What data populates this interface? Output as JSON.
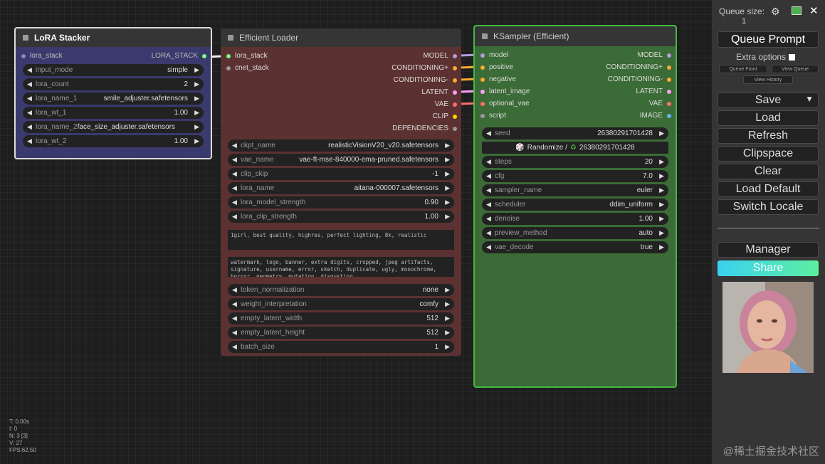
{
  "colors": {
    "background": "#1e1e1e",
    "lora_node_bg": "#3a3a6e",
    "loader_node_bg": "#5c3131",
    "sampler_node_bg": "#3b6b36",
    "sampler_border": "#43b943",
    "share_gradient_start": "#3ad0f0",
    "share_gradient_end": "#5cf0a0",
    "model_slot": "#b39ddb",
    "conditioning_slot": "#ffa931",
    "latent_slot": "#ff9cf9",
    "vae_slot": "#ff6e6e",
    "image_slot": "#64b5f6",
    "lora_stack_slot": "#7cff7c"
  },
  "lora_stacker": {
    "title": "LoRA Stacker",
    "input_slot": "lora_stack",
    "output_slot": "LORA_STACK",
    "widgets": [
      {
        "name": "input_mode",
        "value": "simple"
      },
      {
        "name": "lora_count",
        "value": "2"
      },
      {
        "name": "lora_name_1",
        "value": "smile_adjuster.safetensors"
      },
      {
        "name": "lora_wt_1",
        "value": "1.00"
      },
      {
        "name": "lora_name_2",
        "value": "face_size_adjuster.safetensors"
      },
      {
        "name": "lora_wt_2",
        "value": "1.00"
      }
    ]
  },
  "efficient_loader": {
    "title": "Efficient Loader",
    "inputs": [
      "lora_stack",
      "cnet_stack"
    ],
    "outputs": [
      "MODEL",
      "CONDITIONING+",
      "CONDITIONING-",
      "LATENT",
      "VAE",
      "CLIP",
      "DEPENDENCIES"
    ],
    "widgets_top": [
      {
        "name": "ckpt_name",
        "value": "realisticVisionV20_v20.safetensors"
      },
      {
        "name": "vae_name",
        "value": "vae-ft-mse-840000-ema-pruned.safetensors"
      },
      {
        "name": "clip_skip",
        "value": "-1"
      },
      {
        "name": "lora_name",
        "value": "aitana-000007.safetensors"
      },
      {
        "name": "lora_model_strength",
        "value": "0.90"
      },
      {
        "name": "lora_clip_strength",
        "value": "1.00"
      }
    ],
    "positive_prompt": "1girl, best quality, highres, perfect lighting, 8k, realistic",
    "negative_prompt": "watermark, logo, banner, extra digits, cropped, jpeg artifacts, signature, username, error, sketch, duplicate, ugly, monochrome, horror, geometry, mutation, disgusting",
    "widgets_bottom": [
      {
        "name": "token_normalization",
        "value": "none"
      },
      {
        "name": "weight_interpretation",
        "value": "comfy"
      },
      {
        "name": "empty_latent_width",
        "value": "512"
      },
      {
        "name": "empty_latent_height",
        "value": "512"
      },
      {
        "name": "batch_size",
        "value": "1"
      }
    ]
  },
  "ksampler": {
    "title": "KSampler (Efficient)",
    "inputs": [
      "model",
      "positive",
      "negative",
      "latent_image",
      "optional_vae",
      "script"
    ],
    "outputs": [
      "MODEL",
      "CONDITIONING+",
      "CONDITIONING-",
      "LATENT",
      "VAE",
      "IMAGE"
    ],
    "seed": {
      "name": "seed",
      "value": "26380291701428"
    },
    "randomize_label": "Randomize /",
    "randomize_value": "26380291701428",
    "widgets": [
      {
        "name": "steps",
        "value": "20"
      },
      {
        "name": "cfg",
        "value": "7.0"
      },
      {
        "name": "sampler_name",
        "value": "euler"
      },
      {
        "name": "scheduler",
        "value": "ddim_uniform"
      },
      {
        "name": "denoise",
        "value": "1.00"
      },
      {
        "name": "preview_method",
        "value": "auto"
      },
      {
        "name": "vae_decode",
        "value": "true"
      }
    ]
  },
  "menu": {
    "queue_size_label": "Queue size:",
    "queue_size_value": "1",
    "queue_prompt": "Queue Prompt",
    "extra_options": "Extra options",
    "queue_front": "Queue Front",
    "view_queue": "View Queue",
    "view_history": "View History",
    "save": "Save",
    "load": "Load",
    "refresh": "Refresh",
    "clipspace": "Clipspace",
    "clear": "Clear",
    "load_default": "Load Default",
    "switch_locale": "Switch Locale",
    "manager": "Manager",
    "share": "Share"
  },
  "stats": {
    "t": "T: 0.00s",
    "i": "I: 0",
    "n": "N: 3 [3]",
    "v": "V: 27",
    "fps": "FPS:62.50"
  },
  "watermark": "@稀土掘金技术社区"
}
